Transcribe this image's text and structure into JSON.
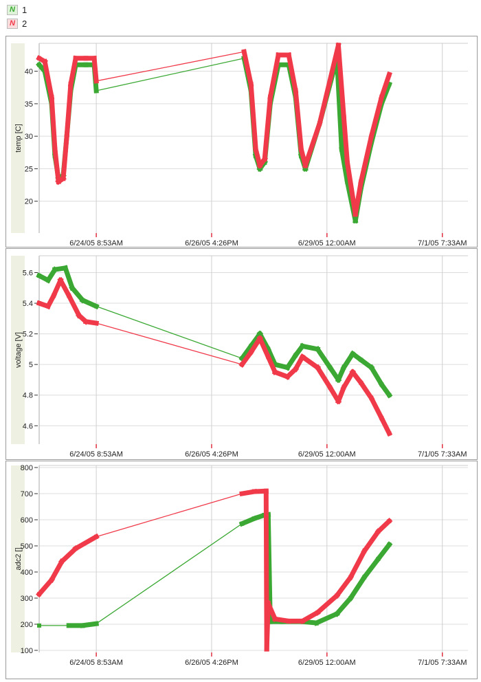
{
  "legend": [
    {
      "label": "1",
      "color": "#3aa832"
    },
    {
      "label": "2",
      "color": "#f03a4a"
    }
  ],
  "chart_data": [
    {
      "type": "line",
      "title": "",
      "xlabel": "",
      "x_unit": "hours since 6/24/05 8:53AM",
      "xlim": [
        -27.5,
        179
      ],
      "xticks": [
        0,
        55.55,
        111.1,
        166.67
      ],
      "xtick_labels": [
        "6/24/05 8:53AM",
        "6/26/05 4:26PM",
        "6/29/05 12:00AM",
        "7/1/05 7:33AM"
      ],
      "ylabel": "temp [C]",
      "ylim": [
        15.1,
        44.3
      ],
      "yticks": [
        20,
        25,
        30,
        35,
        40
      ],
      "grid": true,
      "series": [
        {
          "name": "1",
          "color": "#3aa832",
          "x": [
            -27.5,
            -24.8,
            -21.5,
            -19.9,
            -18.2,
            -15.9,
            -14.2,
            -12.3,
            -9.9,
            -5.0,
            -1.0,
            0,
            71.2,
            74.5,
            76.8,
            78.8,
            81.1,
            83.8,
            87.7,
            92.7,
            96.0,
            98.7,
            100.7,
            107.6,
            115.9,
            118.2,
            120.9,
            124.8,
            127.5,
            132.5,
            137.4,
            141.1
          ],
          "y": [
            41,
            40,
            35,
            27,
            23.5,
            24,
            30,
            37,
            41,
            41,
            41,
            37,
            42,
            37,
            27,
            25,
            26,
            35,
            41,
            41,
            36,
            27,
            25,
            32,
            42,
            28,
            23,
            17,
            22,
            29,
            35,
            38
          ]
        },
        {
          "name": "2",
          "color": "#f03a4a",
          "x": [
            -27.5,
            -24.8,
            -21.5,
            -19.9,
            -18.2,
            -15.9,
            -14.2,
            -12.3,
            -9.9,
            -5.0,
            -1.0,
            0,
            71.2,
            74.5,
            76.8,
            78.8,
            81.1,
            83.8,
            87.7,
            92.7,
            96.0,
            98.7,
            100.7,
            107.6,
            116.6,
            119.2,
            120.9,
            124.8,
            127.5,
            132.5,
            137.4,
            141.1
          ],
          "y": [
            42,
            41.5,
            36,
            28,
            23,
            23.5,
            30,
            38,
            42,
            42,
            42,
            38.5,
            43,
            38,
            28,
            25.5,
            26.5,
            36,
            42.5,
            42.5,
            37,
            28,
            25.5,
            32,
            44,
            33,
            26,
            18,
            23,
            30,
            36,
            39.5
          ]
        }
      ]
    },
    {
      "type": "line",
      "title": "",
      "xlabel": "",
      "x_unit": "hours since 6/24/05 8:53AM",
      "xlim": [
        -27.5,
        179
      ],
      "xticks": [
        0,
        55.55,
        111.1,
        166.67
      ],
      "xtick_labels": [
        "6/24/05 8:53AM",
        "6/26/05 4:26PM",
        "6/29/05 12:00AM",
        "7/1/05 7:33AM"
      ],
      "ylabel": "voltage [V]",
      "ylim": [
        4.48,
        5.71
      ],
      "yticks": [
        4.6,
        4.8,
        5,
        5.2,
        5.4,
        5.6
      ],
      "ytick_labels": [
        "4.6",
        "4.8",
        "5",
        "5.2",
        "5.4",
        "5.6"
      ],
      "grid": true,
      "series": [
        {
          "name": "1",
          "color": "#3aa832",
          "x": [
            -27.5,
            -23.2,
            -19.9,
            -14.9,
            -11.6,
            -6.6,
            0,
            70.2,
            74.5,
            78.8,
            82.8,
            86.1,
            92.1,
            96.0,
            99.3,
            106.6,
            112.6,
            116.6,
            119.2,
            123.5,
            127.5,
            132.5,
            137.4,
            141.1
          ],
          "y": [
            5.58,
            5.55,
            5.62,
            5.63,
            5.5,
            5.42,
            5.38,
            5.04,
            5.12,
            5.2,
            5.1,
            5.0,
            4.98,
            5.06,
            5.12,
            5.1,
            4.98,
            4.9,
            4.98,
            5.07,
            5.03,
            4.98,
            4.87,
            4.8
          ]
        },
        {
          "name": "2",
          "color": "#f03a4a",
          "x": [
            -27.5,
            -23.2,
            -20.5,
            -17.2,
            -13.2,
            -8.3,
            -5.0,
            0,
            70.2,
            74.5,
            78.8,
            82.8,
            86.1,
            92.1,
            96.0,
            99.3,
            106.6,
            112.6,
            116.6,
            119.2,
            123.5,
            127.5,
            132.5,
            137.4,
            141.1
          ],
          "y": [
            5.4,
            5.38,
            5.45,
            5.55,
            5.45,
            5.32,
            5.28,
            5.27,
            5.0,
            5.08,
            5.17,
            5.05,
            4.95,
            4.92,
            4.97,
            5.05,
            4.98,
            4.85,
            4.76,
            4.85,
            4.95,
            4.88,
            4.78,
            4.65,
            4.55
          ]
        }
      ]
    },
    {
      "type": "line",
      "title": "",
      "xlabel": "",
      "x_unit": "hours since 6/24/05 8:53AM",
      "xlim": [
        -27.5,
        179
      ],
      "xticks": [
        0,
        55.55,
        111.1,
        166.67
      ],
      "xtick_labels": [
        "6/24/05 8:53AM",
        "6/26/05 4:26PM",
        "6/29/05 12:00AM",
        "7/1/05 7:33AM"
      ],
      "ylabel": "adc2 []",
      "ylim": [
        92,
        808
      ],
      "yticks": [
        100,
        200,
        300,
        400,
        500,
        600,
        700,
        800
      ],
      "grid": true,
      "series": [
        {
          "name": "1",
          "color": "#3aa832",
          "x": [
            -27.5,
            -13.2,
            -6.6,
            0,
            70.2,
            76.2,
            81.1,
            82.8,
            83.8,
            89.4,
            99.3,
            106.0,
            115.9,
            122.5,
            129.1,
            135.8,
            141.1
          ],
          "y": [
            195,
            195,
            195,
            202,
            585,
            605,
            618,
            620,
            210,
            210,
            210,
            205,
            240,
            300,
            380,
            450,
            505
          ]
        },
        {
          "name": "2",
          "color": "#f03a4a",
          "x": [
            -27.5,
            -21.5,
            -16.6,
            -9.9,
            0,
            70.2,
            76.2,
            81.8,
            82.1,
            82.8,
            86.1,
            92.7,
            99.3,
            106.6,
            115.9,
            122.5,
            129.1,
            135.8,
            141.1
          ],
          "y": [
            315,
            370,
            440,
            490,
            535,
            700,
            708,
            710,
            105,
            280,
            220,
            212,
            212,
            245,
            310,
            380,
            480,
            555,
            595
          ]
        }
      ]
    }
  ]
}
